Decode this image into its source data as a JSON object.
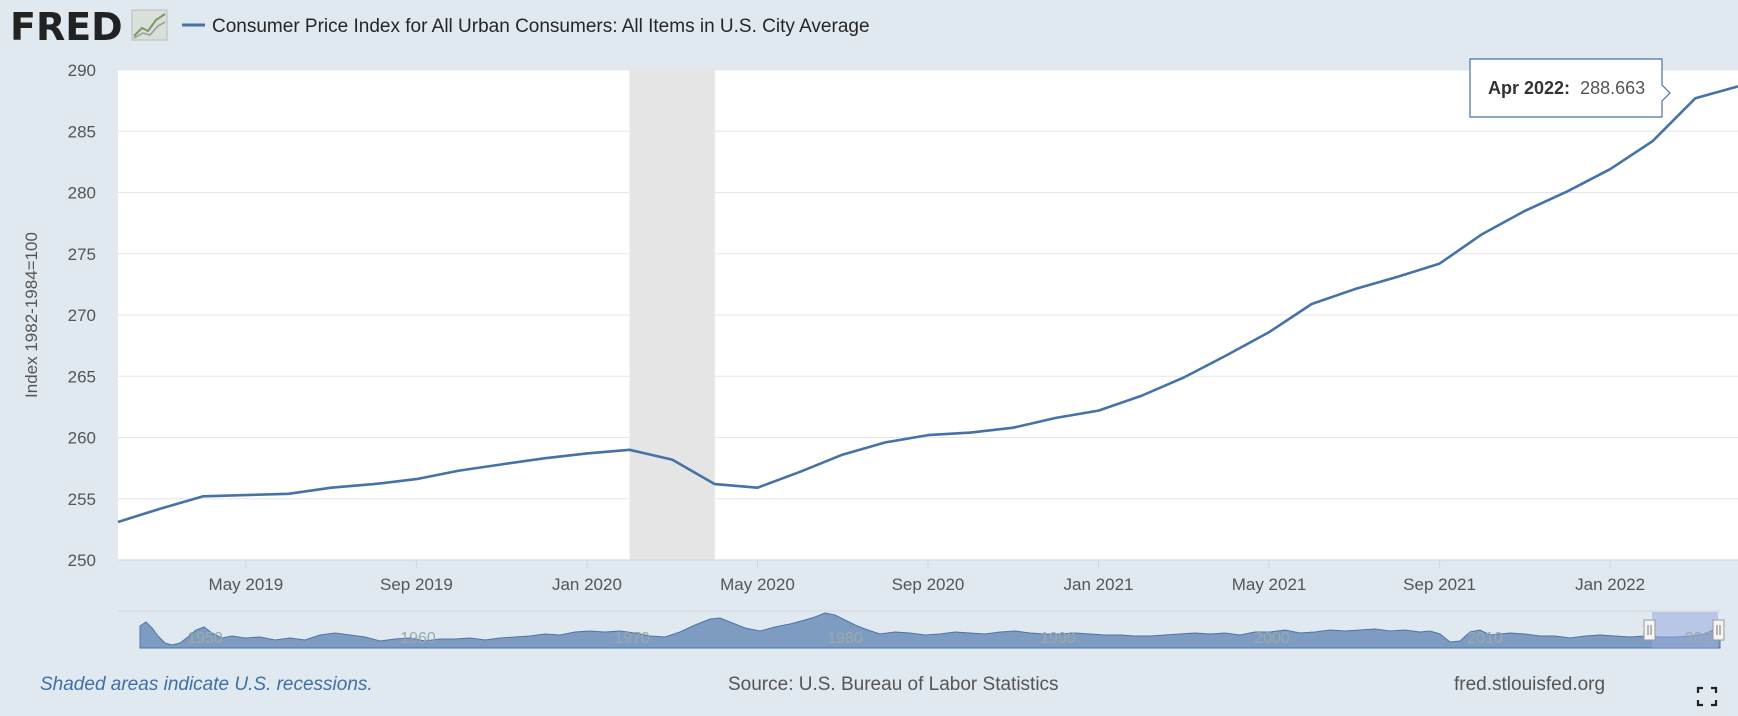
{
  "header": {
    "logo": "FRED",
    "legend_label": "Consumer Price Index for All Urban Consumers: All Items in U.S. City Average",
    "line_color": "#4572a7"
  },
  "chart_data": {
    "type": "line",
    "title": "Consumer Price Index for All Urban Consumers: All Items in U.S. City Average",
    "ylabel": "Index 1982-1984=100",
    "xlabel": "",
    "ylim": [
      250,
      290
    ],
    "y_ticks": [
      250,
      255,
      260,
      265,
      270,
      275,
      280,
      285,
      290
    ],
    "x_ticks": [
      "May 2019",
      "Sep 2019",
      "Jan 2020",
      "May 2020",
      "Sep 2020",
      "Jan 2021",
      "May 2021",
      "Sep 2021",
      "Jan 2022"
    ],
    "x_tick_dates": [
      "2019-05",
      "2019-09",
      "2020-01",
      "2020-05",
      "2020-09",
      "2021-01",
      "2021-05",
      "2021-09",
      "2022-01"
    ],
    "grid": true,
    "recession_band": {
      "start": "2020-02",
      "end": "2020-04"
    },
    "series": [
      {
        "name": "Consumer Price Index for All Urban Consumers: All Items in U.S. City Average",
        "x": [
          "2019-02",
          "2019-03",
          "2019-04",
          "2019-05",
          "2019-06",
          "2019-07",
          "2019-08",
          "2019-09",
          "2019-10",
          "2019-11",
          "2019-12",
          "2020-01",
          "2020-02",
          "2020-03",
          "2020-04",
          "2020-05",
          "2020-06",
          "2020-07",
          "2020-08",
          "2020-09",
          "2020-10",
          "2020-11",
          "2020-12",
          "2021-01",
          "2021-02",
          "2021-03",
          "2021-04",
          "2021-05",
          "2021-06",
          "2021-07",
          "2021-08",
          "2021-09",
          "2021-10",
          "2021-11",
          "2021-12",
          "2022-01",
          "2022-02",
          "2022-03",
          "2022-04"
        ],
        "values": [
          253.1,
          254.2,
          255.2,
          255.3,
          255.4,
          255.9,
          256.2,
          256.6,
          257.3,
          257.8,
          258.3,
          258.7,
          259.0,
          258.2,
          256.2,
          255.9,
          257.2,
          258.6,
          259.6,
          260.2,
          260.4,
          260.8,
          261.6,
          262.2,
          263.4,
          264.9,
          266.7,
          268.6,
          270.9,
          272.1,
          273.1,
          274.2,
          276.6,
          278.5,
          280.1,
          281.9,
          284.2,
          287.7,
          288.663
        ]
      }
    ],
    "tooltip": {
      "label": "Apr 2022:",
      "value": "288.663"
    }
  },
  "navigator": {
    "labels": [
      "1950",
      "1960",
      "1970",
      "1980",
      "1990",
      "2000",
      "2010",
      "202"
    ]
  },
  "footer": {
    "recession_note": "Shaded areas indicate U.S. recessions.",
    "source": "Source: U.S. Bureau of Labor Statistics",
    "site": "fred.stlouisfed.org"
  },
  "colors": {
    "background": "#e1e9f0",
    "series": "#4572a7",
    "recession": "#e5e5e5",
    "note": "#3f6fa6"
  },
  "icons": {
    "logo_graph": "line-graph-icon",
    "fullscreen": "fullscreen-icon"
  }
}
